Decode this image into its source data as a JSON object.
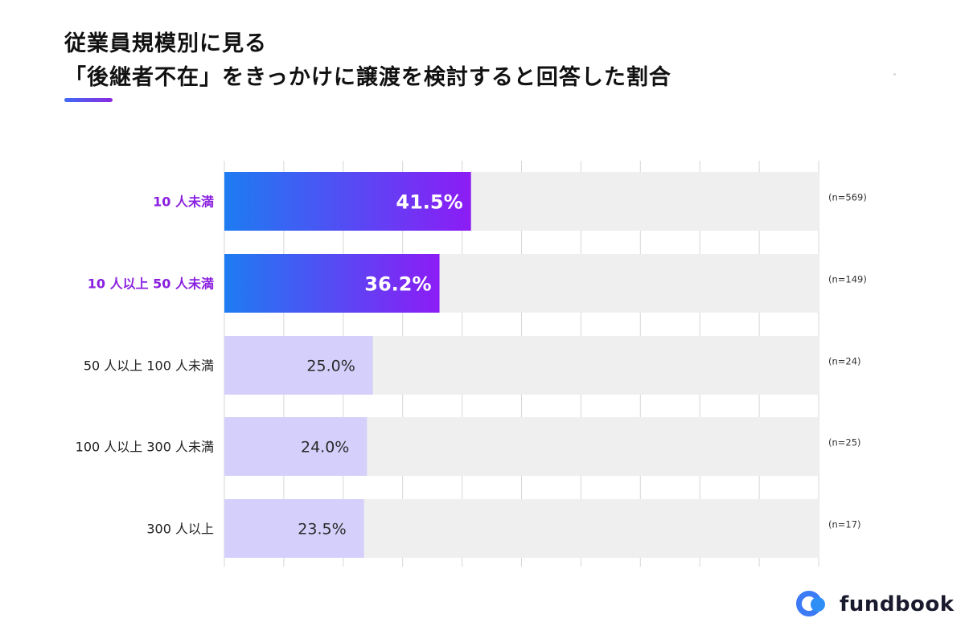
{
  "title": {
    "line1": "従業員規模別に見る",
    "line2": "「後継者不在」をきっかけに譲渡を検討すると回答した割合"
  },
  "brand": {
    "name": "fundbook"
  },
  "colors": {
    "highlight_label": "#8a20e0",
    "normal_label": "#222222",
    "highlight_bar_start": "#1d7cf2",
    "highlight_bar_end": "#8c1cf5",
    "normal_bar": "#d4d0fb",
    "track": "#efefef",
    "grid": "#d7d7d7"
  },
  "chart_data": {
    "type": "bar",
    "orientation": "horizontal",
    "categories": [
      "10 人未満",
      "10 人以上 50 人未満",
      "50 人以上 100 人未満",
      "100 人以上 300 人未満",
      "300 人以上"
    ],
    "values": [
      41.5,
      36.2,
      25.0,
      24.0,
      23.5
    ],
    "value_labels": [
      "41.5%",
      "36.2%",
      "25.0%",
      "24.0%",
      "23.5%"
    ],
    "sample_sizes": [
      "(n=569)",
      "(n=149)",
      "(n=24)",
      "(n=25)",
      "(n=17)"
    ],
    "highlighted": [
      true,
      true,
      false,
      false,
      false
    ],
    "xlim": [
      0,
      100
    ],
    "grid": true
  }
}
